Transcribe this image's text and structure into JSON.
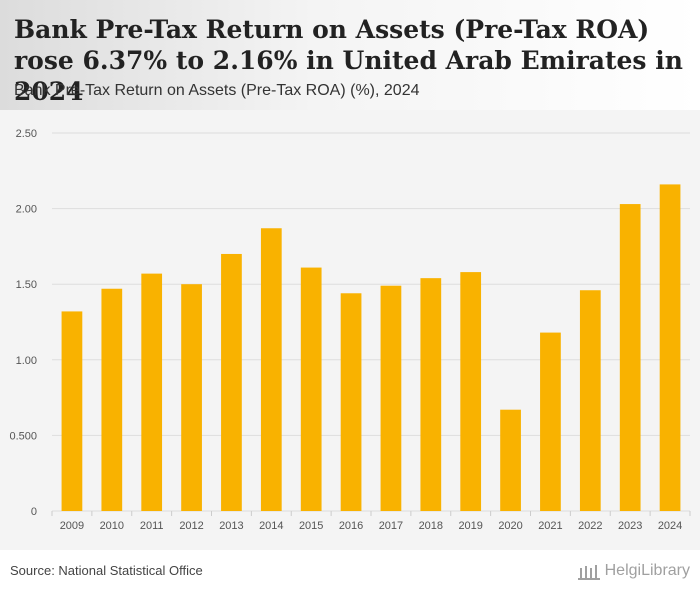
{
  "header": {
    "title": "Bank Pre-Tax Return on Assets (Pre-Tax ROA) rose 6.37% to 2.16% in United Arab Emirates in 2024",
    "subtitle": "Bank Pre-Tax Return on Assets (Pre-Tax ROA) (%), 2024"
  },
  "footer": {
    "source": "Source: National Statistical Office",
    "logo_text": "HelgiLibrary"
  },
  "colors": {
    "bar": "#f9b200",
    "grid": "#dddddd",
    "plot_bg": "#f4f4f4",
    "axis_text": "#555555"
  },
  "chart_data": {
    "type": "bar",
    "title": "Bank Pre-Tax Return on Assets (Pre-Tax ROA) rose 6.37% to 2.16% in United Arab Emirates in 2024",
    "subtitle": "Bank Pre-Tax Return on Assets (Pre-Tax ROA) (%), 2024",
    "xlabel": "",
    "ylabel": "",
    "categories": [
      "2009",
      "2010",
      "2011",
      "2012",
      "2013",
      "2014",
      "2015",
      "2016",
      "2017",
      "2018",
      "2019",
      "2020",
      "2021",
      "2022",
      "2023",
      "2024"
    ],
    "values": [
      1.32,
      1.47,
      1.57,
      1.5,
      1.7,
      1.87,
      1.61,
      1.44,
      1.49,
      1.54,
      1.58,
      0.67,
      1.18,
      1.46,
      2.03,
      2.16
    ],
    "ylim": [
      0,
      2.5
    ],
    "yticks": [
      0,
      0.5,
      1.0,
      1.5,
      2.0,
      2.5
    ],
    "ytick_labels": [
      "0",
      "0.500",
      "1.00",
      "1.50",
      "2.00",
      "2.50"
    ],
    "grid": true,
    "legend": "none"
  }
}
